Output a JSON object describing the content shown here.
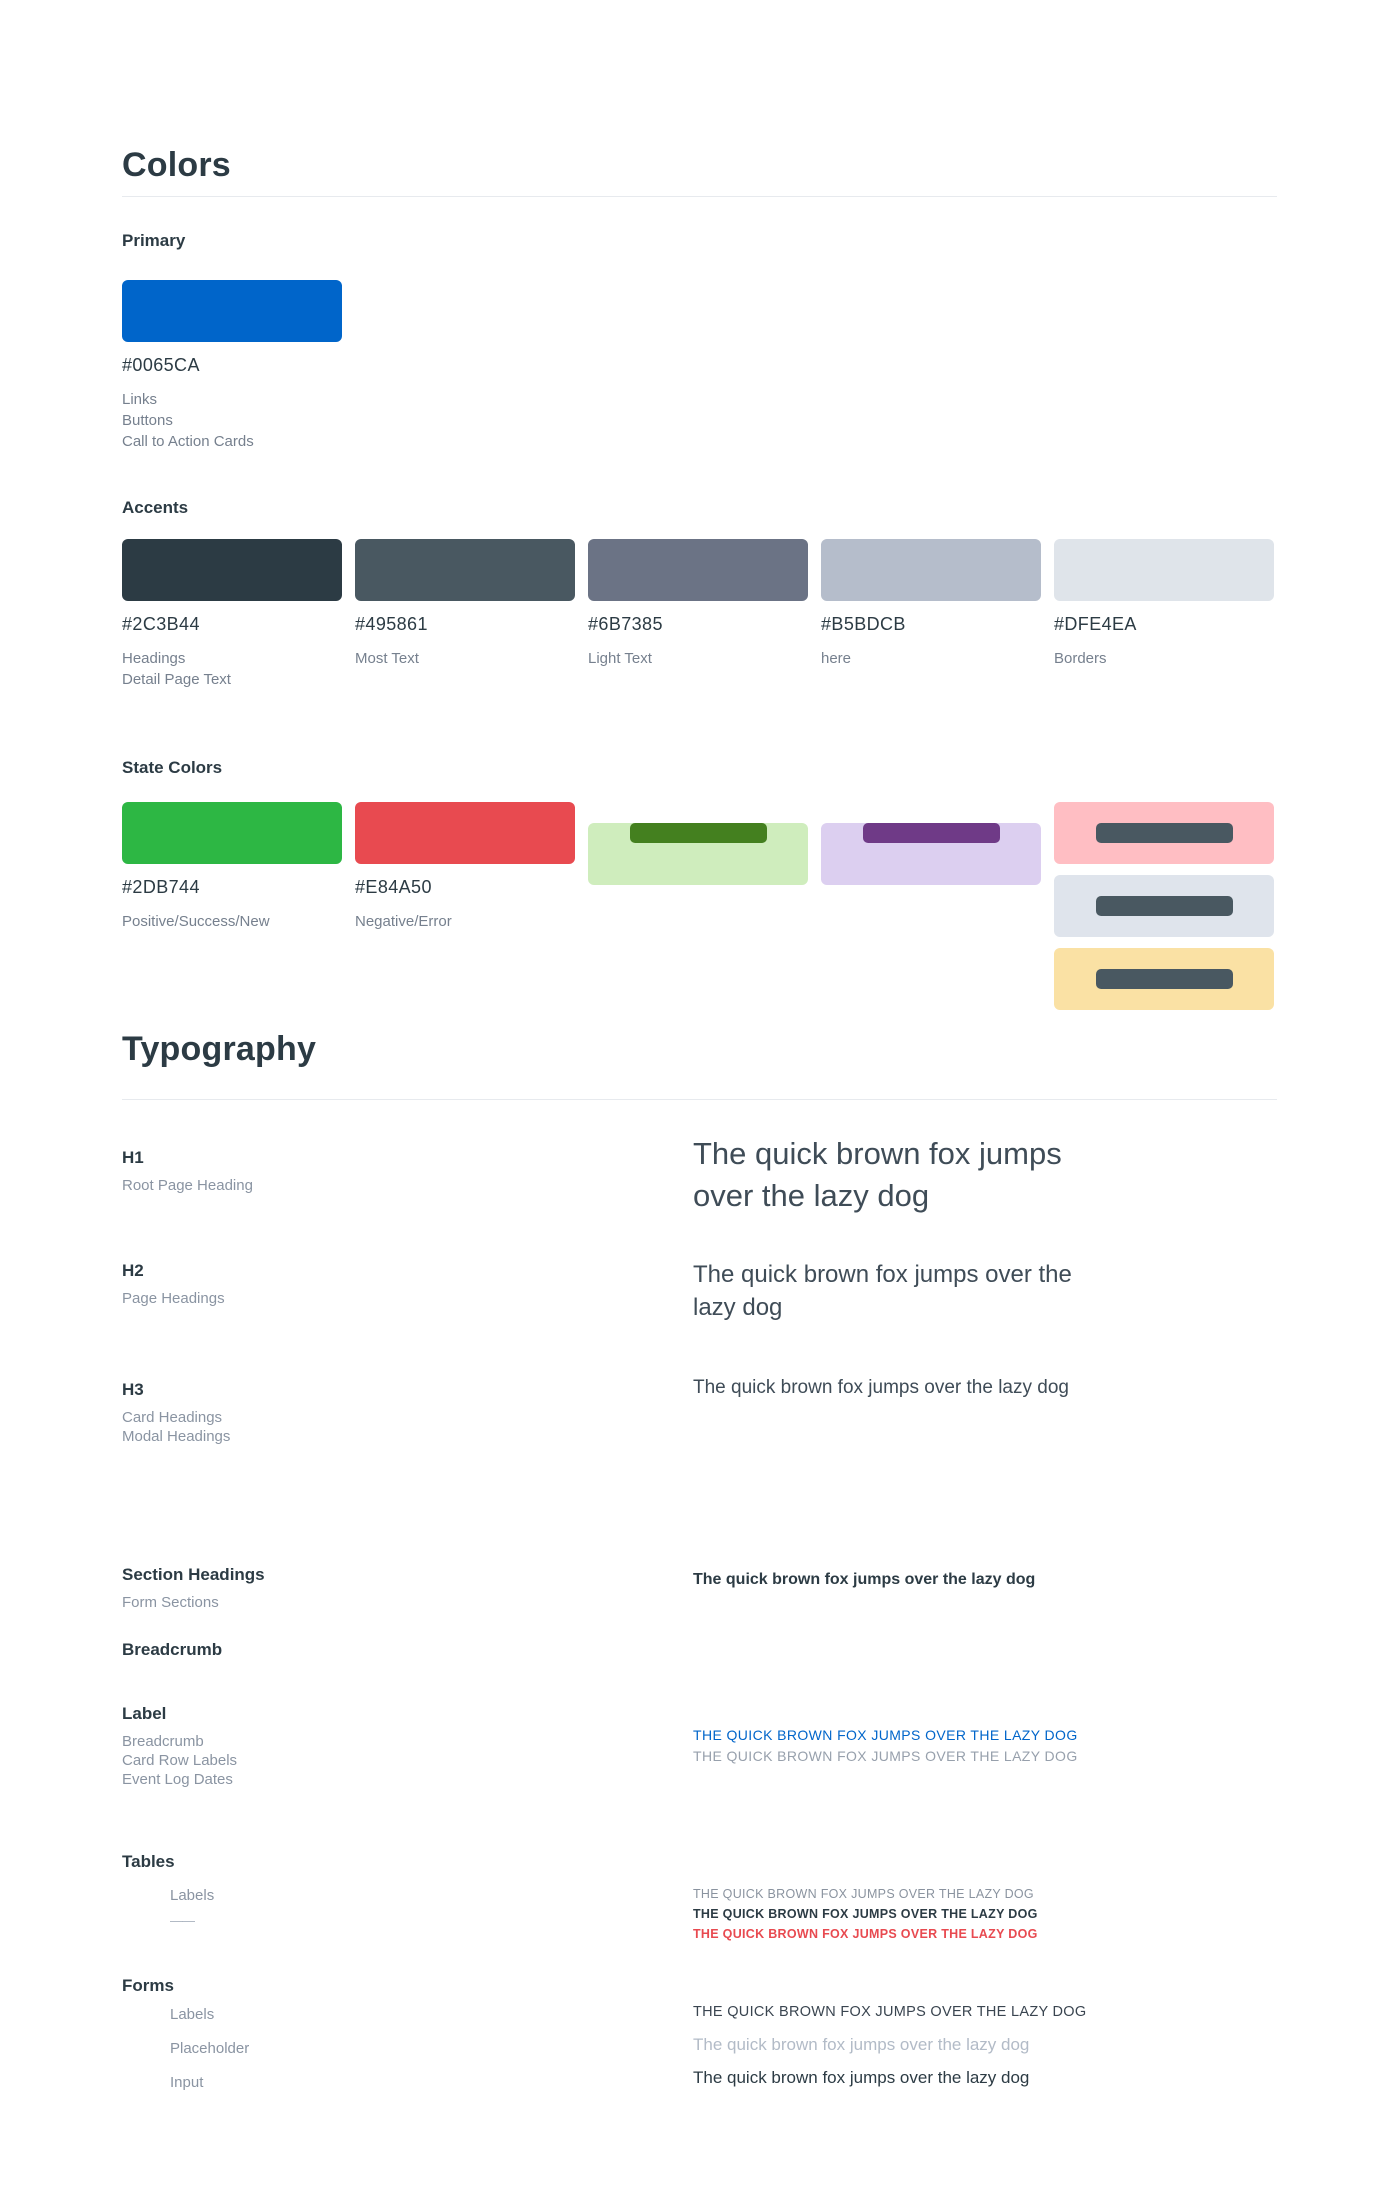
{
  "palette": {
    "primary": "#0065CA",
    "heading_dark": "#2C3B44",
    "most_text": "#495861",
    "light_text": "#6B7385",
    "muted": "#B5BDCB",
    "border": "#DFE4EA",
    "success": "#2DB744",
    "danger": "#E84A50"
  },
  "colors": {
    "title": "Colors",
    "primary": {
      "label": "Primary",
      "swatch": {
        "hex": "#0065CA",
        "uses": "Links\nButtons\nCall to Action Cards"
      }
    },
    "accents": {
      "label": "Accents",
      "swatches": [
        {
          "hex": "#2C3B44",
          "uses": "Headings\nDetail Page Text"
        },
        {
          "hex": "#495861",
          "uses": "Most Text"
        },
        {
          "hex": "#6B7385",
          "uses": "Light Text"
        },
        {
          "hex": "#B5BDCB",
          "uses": "here"
        },
        {
          "hex": "#DFE4EA",
          "uses": "Borders"
        }
      ]
    },
    "states": {
      "label": "State Colors",
      "swatches": [
        {
          "hex": "#2DB744",
          "uses": "Positive/Success/New"
        },
        {
          "hex": "#E84A50",
          "uses": "Negative/Error"
        }
      ],
      "badges": [
        {
          "bg": "#CFEDBD",
          "pill": "#44801F"
        },
        {
          "bg": "#DCCFF0",
          "pill": "#6F3A87"
        }
      ],
      "stacked_badges": [
        {
          "bg": "#FFBEC3",
          "pill": "#495861"
        },
        {
          "bg": "#DFE4EC",
          "pill": "#495861"
        },
        {
          "bg": "#FAE1A4",
          "pill": "#495861"
        }
      ]
    }
  },
  "typography": {
    "title": "Typography",
    "h1": {
      "label": "H1",
      "sub": "Root Page Heading",
      "sample": "The quick brown fox jumps\nover the lazy dog"
    },
    "h2": {
      "label": "H2",
      "sub": "Page Headings",
      "sample": "The quick brown fox jumps over the\nlazy dog"
    },
    "h3": {
      "label": "H3",
      "sub": "Card Headings\nModal Headings",
      "sample": "The quick brown fox jumps over the lazy dog"
    },
    "section_headings": {
      "label": "Section Headings",
      "sub": "Form Sections",
      "sample": "The quick brown fox jumps over the lazy dog"
    },
    "breadcrumb": {
      "label": "Breadcrumb"
    },
    "label": {
      "label": "Label",
      "sub": "Breadcrumb\nCard Row Labels\nEvent Log Dates",
      "sample_link": "THE QUICK BROWN FOX JUMPS OVER THE LAZY DOG",
      "sample_muted": "THE QUICK BROWN FOX JUMPS OVER THE LAZY DOG"
    },
    "tables": {
      "label": "Tables",
      "sub": "Labels",
      "dash": "——",
      "sample_muted": "THE QUICK BROWN FOX JUMPS OVER THE LAZY DOG",
      "sample_strong": "THE QUICK BROWN FOX JUMPS OVER THE LAZY DOG",
      "sample_danger": "THE QUICK BROWN FOX JUMPS OVER THE LAZY DOG"
    },
    "forms": {
      "label": "Forms",
      "subs": [
        "Labels",
        "Placeholder",
        "Input"
      ],
      "sample_label": "THE QUICK BROWN FOX JUMPS OVER THE LAZY DOG",
      "sample_placeholder": "The quick brown fox jumps over the lazy dog",
      "sample_input": "The quick brown fox jumps over the lazy dog"
    }
  }
}
